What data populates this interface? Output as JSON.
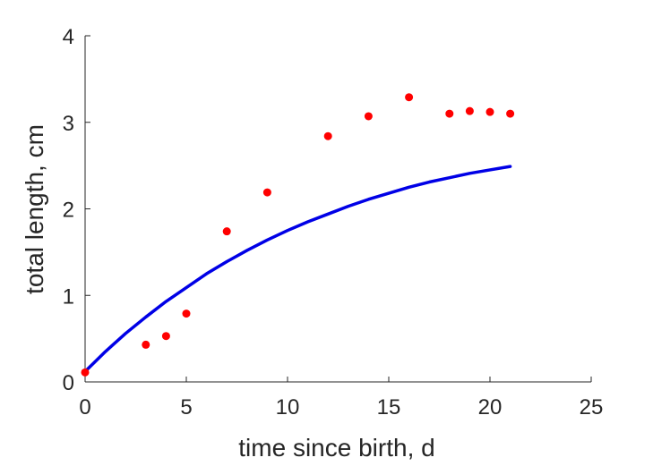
{
  "chart_data": {
    "type": "scatter",
    "title": "",
    "xlabel": "time since birth, d",
    "ylabel": "total length, cm",
    "xlim": [
      0,
      25
    ],
    "ylim": [
      0,
      4
    ],
    "xticks": [
      0,
      5,
      10,
      15,
      20,
      25
    ],
    "yticks": [
      0,
      1,
      2,
      3,
      4
    ],
    "grid": false,
    "colors": {
      "points": "#ff0000",
      "curve": "#0000e6",
      "axis": "#262626"
    },
    "series": [
      {
        "type": "scatter",
        "x": [
          0,
          3,
          4,
          5,
          7,
          9,
          12,
          14,
          16,
          18,
          19,
          20,
          21
        ],
        "y": [
          0.11,
          0.43,
          0.53,
          0.79,
          1.74,
          2.19,
          2.84,
          3.07,
          3.29,
          3.1,
          3.13,
          3.12,
          3.1
        ]
      },
      {
        "type": "line",
        "x": [
          0,
          1,
          2,
          3,
          4,
          5,
          6,
          7,
          8,
          9,
          10,
          11,
          12,
          13,
          14,
          15,
          16,
          17,
          18,
          19,
          20,
          21
        ],
        "y": [
          0.12,
          0.35,
          0.56,
          0.75,
          0.93,
          1.09,
          1.25,
          1.39,
          1.52,
          1.64,
          1.75,
          1.85,
          1.94,
          2.03,
          2.11,
          2.18,
          2.25,
          2.31,
          2.36,
          2.41,
          2.45,
          2.49
        ]
      }
    ]
  }
}
